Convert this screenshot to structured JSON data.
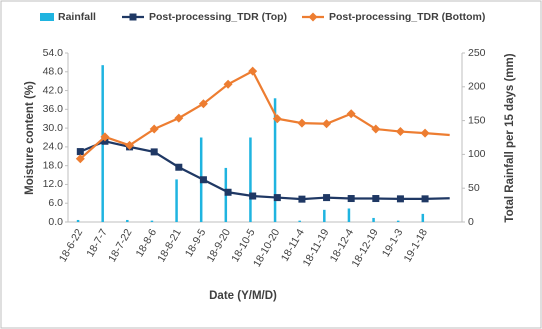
{
  "chart_data": {
    "type": "combo",
    "x_label": "Date (Y/M/D)",
    "y_label": "Moisture content (%)",
    "y2_label": "Total Rainfall per 15 days (mm)",
    "categories": [
      "18-6-22",
      "18-7-7",
      "18-7-22",
      "18-8-6",
      "18-8-21",
      "18-9-5",
      "18-9-20",
      "18-10-5",
      "18-10-20",
      "18-11-4",
      "18-11-19",
      "18-12-4",
      "18-12-19",
      "19-1-3",
      "19-1-18",
      null
    ],
    "series": [
      {
        "name": "Rainfall",
        "type": "bar",
        "axis": "y2",
        "color": "#1fb4e0",
        "values": [
          3,
          232,
          3,
          2,
          63,
          125,
          80,
          125,
          183,
          2,
          18,
          20,
          6,
          2,
          12,
          null
        ]
      },
      {
        "name": "Post-processing_TDR (Top)",
        "type": "line",
        "marker": "square",
        "color": "#1f3864",
        "values": [
          22.5,
          25.8,
          24.0,
          22.4,
          17.5,
          13.5,
          9.5,
          8.3,
          7.8,
          7.3,
          7.8,
          7.5,
          7.5,
          7.4,
          7.4,
          7.6
        ]
      },
      {
        "name": "Post-processing_TDR (Bottom)",
        "type": "line",
        "marker": "diamond",
        "color": "#ed7d31",
        "values": [
          20.2,
          27.2,
          24.5,
          29.7,
          33.2,
          37.8,
          44.0,
          48.2,
          33.0,
          31.6,
          31.4,
          34.6,
          29.7,
          28.9,
          28.4,
          27.8
        ]
      }
    ],
    "ylim": [
      0,
      54
    ],
    "yticks": [
      {
        "value": 0,
        "label": "0.0"
      },
      {
        "value": 6,
        "label": "6.0"
      },
      {
        "value": 12,
        "label": "12.0"
      },
      {
        "value": 18,
        "label": "18.0"
      },
      {
        "value": 24,
        "label": "24.0"
      },
      {
        "value": 30,
        "label": "30.0"
      },
      {
        "value": 36,
        "label": "36.0"
      },
      {
        "value": 42,
        "label": "42.0"
      },
      {
        "value": 48,
        "label": "48.0"
      },
      {
        "value": 54,
        "label": "54.0"
      }
    ],
    "y2lim": [
      0,
      250
    ],
    "y2ticks": [
      0,
      50,
      100,
      150,
      200,
      250
    ],
    "grid": false
  }
}
